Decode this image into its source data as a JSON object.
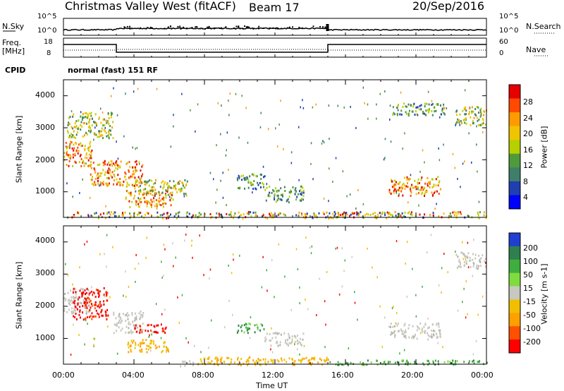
{
  "header": {
    "station": "Christmas Valley West (fitACF)",
    "beam": "Beam 17",
    "date": "20/Sep/2016",
    "cpid_label": "CPID",
    "cpid_value": "normal (fast) 151 RF"
  },
  "strip_nsky": {
    "left_label": "N.Sky",
    "right_label": "N.Search",
    "left_ticks": [
      "10^5",
      "10^0"
    ],
    "right_ticks": [
      "10^5",
      "10^0"
    ]
  },
  "strip_freq": {
    "left_label_1": "Freq.",
    "left_label_2": "[MHz]",
    "right_label": "Nave",
    "left_ticks": [
      "18",
      "8"
    ],
    "right_ticks": [
      "60",
      "0"
    ]
  },
  "chart_data": [
    {
      "type": "heatmap",
      "name": "power",
      "ylabel": "Slant Range [km]",
      "xlabel": "Time UT",
      "ylim": [
        200,
        4500
      ],
      "xlim": [
        0,
        24
      ],
      "yticks": [
        "1000",
        "2000",
        "3000",
        "4000"
      ],
      "colorbar": {
        "label": "Power [dB]",
        "ticks": [
          "28",
          "24",
          "20",
          "16",
          "12",
          "8",
          "4"
        ],
        "colors": [
          "#e60000",
          "#ff4a00",
          "#ff9a00",
          "#f0c400",
          "#b7d000",
          "#4f9a3a",
          "#3f7f6a",
          "#1f3fb0",
          "#0000ff"
        ]
      },
      "regions": [
        {
          "t0": 0.0,
          "t1": 1.6,
          "r0": 1800,
          "r1": 2600,
          "level": "high"
        },
        {
          "t0": 0.2,
          "t1": 2.8,
          "r0": 2700,
          "r1": 3500,
          "level": "mid"
        },
        {
          "t0": 1.5,
          "t1": 4.5,
          "r0": 1200,
          "r1": 2000,
          "level": "high"
        },
        {
          "t0": 3.5,
          "t1": 6.2,
          "r0": 550,
          "r1": 1100,
          "level": "high"
        },
        {
          "t0": 4.0,
          "t1": 7.0,
          "r0": 900,
          "r1": 1400,
          "level": "mid"
        },
        {
          "t0": 9.8,
          "t1": 11.4,
          "r0": 1100,
          "r1": 1600,
          "level": "low"
        },
        {
          "t0": 11.4,
          "t1": 13.6,
          "r0": 700,
          "r1": 1200,
          "level": "low"
        },
        {
          "t0": 18.4,
          "t1": 21.4,
          "r0": 900,
          "r1": 1500,
          "level": "high"
        },
        {
          "t0": 18.6,
          "t1": 21.6,
          "r0": 3400,
          "r1": 3800,
          "level": "low"
        },
        {
          "t0": 22.2,
          "t1": 24.0,
          "r0": 3100,
          "r1": 3700,
          "level": "mid"
        },
        {
          "t0": 0.0,
          "t1": 24.0,
          "r0": 200,
          "r1": 400,
          "level": "mixed"
        }
      ]
    },
    {
      "type": "heatmap",
      "name": "velocity",
      "ylabel": "Slant Range [km]",
      "xlabel": "Time UT",
      "ylim": [
        200,
        4500
      ],
      "xlim": [
        0,
        24
      ],
      "xticks": [
        "00:00",
        "04:00",
        "08:00",
        "12:00",
        "16:00",
        "20:00",
        "00:00"
      ],
      "yticks": [
        "1000",
        "2000",
        "3000",
        "4000"
      ],
      "colorbar": {
        "label": "Velocity [m s-1]",
        "ticks": [
          "200",
          "100",
          "50",
          "15",
          "-15",
          "-50",
          "-100",
          "-200"
        ],
        "colors": [
          "#1f3fd0",
          "#2f7f4f",
          "#3fae3f",
          "#7fdc3f",
          "#c8c8c0",
          "#f0c000",
          "#ffa000",
          "#ff5000",
          "#ff0000"
        ]
      },
      "regions": [
        {
          "t0": 0.0,
          "t1": 1.5,
          "r0": 1800,
          "r1": 2600,
          "level": "ground"
        },
        {
          "t0": 0.5,
          "t1": 2.5,
          "r0": 1600,
          "r1": 2600,
          "level": "negative"
        },
        {
          "t0": 2.8,
          "t1": 4.5,
          "r0": 1200,
          "r1": 1900,
          "level": "ground"
        },
        {
          "t0": 4.0,
          "t1": 5.8,
          "r0": 1200,
          "r1": 1500,
          "level": "negative"
        },
        {
          "t0": 3.6,
          "t1": 6.0,
          "r0": 600,
          "r1": 1000,
          "level": "orange"
        },
        {
          "t0": 6.6,
          "t1": 7.4,
          "r0": 150,
          "r1": 350,
          "level": "ground"
        },
        {
          "t0": 9.8,
          "t1": 11.4,
          "r0": 1200,
          "r1": 1500,
          "level": "positive"
        },
        {
          "t0": 11.4,
          "t1": 13.6,
          "r0": 800,
          "r1": 1200,
          "level": "ground"
        },
        {
          "t0": 7.5,
          "t1": 15.0,
          "r0": 200,
          "r1": 450,
          "level": "orange"
        },
        {
          "t0": 15.0,
          "t1": 24.0,
          "r0": 200,
          "r1": 350,
          "level": "positive"
        },
        {
          "t0": 18.4,
          "t1": 21.4,
          "r0": 1000,
          "r1": 1500,
          "level": "ground"
        },
        {
          "t0": 22.2,
          "t1": 24.0,
          "r0": 3200,
          "r1": 3700,
          "level": "ground"
        }
      ]
    }
  ]
}
